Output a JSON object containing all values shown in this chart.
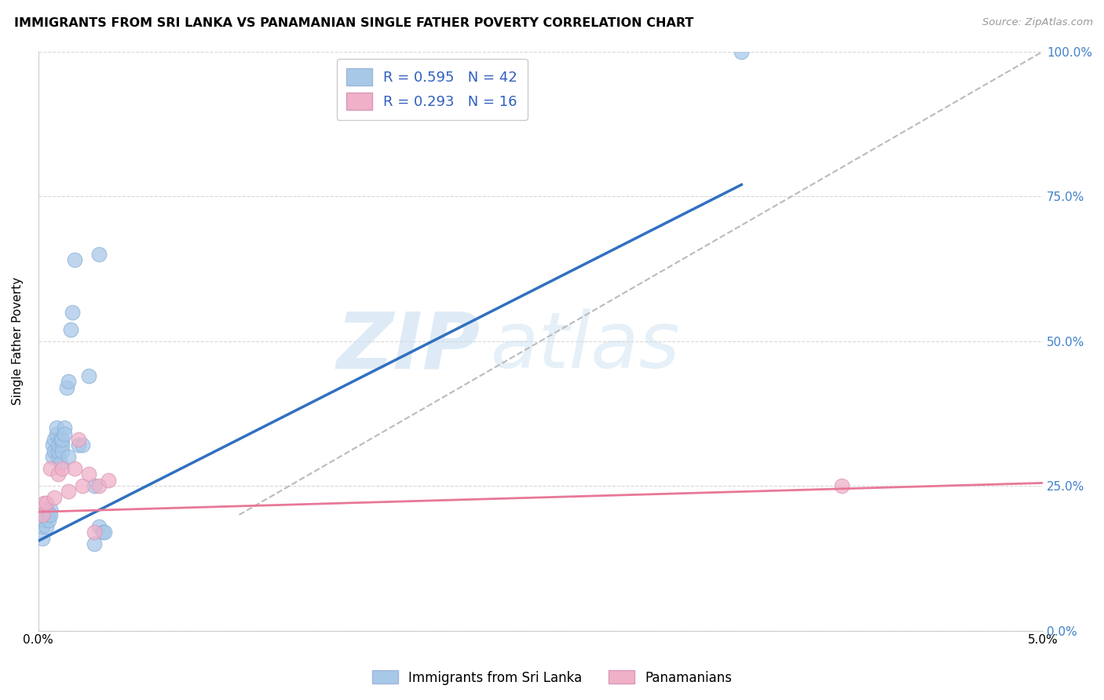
{
  "title": "IMMIGRANTS FROM SRI LANKA VS PANAMANIAN SINGLE FATHER POVERTY CORRELATION CHART",
  "source": "Source: ZipAtlas.com",
  "ylabel": "Single Father Poverty",
  "right_yticks": [
    "0.0%",
    "25.0%",
    "50.0%",
    "75.0%",
    "100.0%"
  ],
  "right_ytick_vals": [
    0.0,
    0.25,
    0.5,
    0.75,
    1.0
  ],
  "legend_blue_r": "R = 0.595",
  "legend_blue_n": "N = 42",
  "legend_pink_r": "R = 0.293",
  "legend_pink_n": "N = 16",
  "blue_color": "#a8c8e8",
  "pink_color": "#f0b0c8",
  "blue_line_color": "#3070c0",
  "pink_line_color": "#e87898",
  "watermark_zip": "ZIP",
  "watermark_atlas": "atlas",
  "blue_scatter_x": [
    0.0002,
    0.0002,
    0.0003,
    0.0003,
    0.0004,
    0.0004,
    0.0005,
    0.0005,
    0.0006,
    0.0006,
    0.0007,
    0.0007,
    0.0008,
    0.0008,
    0.0009,
    0.0009,
    0.001,
    0.001,
    0.001,
    0.0011,
    0.0011,
    0.0012,
    0.0012,
    0.0012,
    0.0013,
    0.0013,
    0.0014,
    0.0015,
    0.0015,
    0.0016,
    0.0017,
    0.0018,
    0.002,
    0.0022,
    0.0025,
    0.0028,
    0.003,
    0.0032,
    0.0033,
    0.035,
    0.003,
    0.0028
  ],
  "blue_scatter_y": [
    0.18,
    0.16,
    0.19,
    0.2,
    0.18,
    0.21,
    0.2,
    0.19,
    0.21,
    0.2,
    0.32,
    0.3,
    0.31,
    0.33,
    0.34,
    0.35,
    0.3,
    0.31,
    0.32,
    0.33,
    0.29,
    0.32,
    0.31,
    0.33,
    0.35,
    0.34,
    0.42,
    0.43,
    0.3,
    0.52,
    0.55,
    0.64,
    0.32,
    0.32,
    0.44,
    0.25,
    0.18,
    0.17,
    0.17,
    1.0,
    0.65,
    0.15
  ],
  "pink_scatter_x": [
    0.0002,
    0.0003,
    0.0004,
    0.0006,
    0.0008,
    0.001,
    0.0012,
    0.0015,
    0.0018,
    0.002,
    0.0022,
    0.0025,
    0.0028,
    0.003,
    0.0035,
    0.04
  ],
  "pink_scatter_y": [
    0.2,
    0.22,
    0.22,
    0.28,
    0.23,
    0.27,
    0.28,
    0.24,
    0.28,
    0.33,
    0.25,
    0.27,
    0.17,
    0.25,
    0.26,
    0.25
  ],
  "blue_line_x": [
    0.0,
    0.035
  ],
  "blue_line_y": [
    0.155,
    0.77
  ],
  "pink_line_x": [
    0.0,
    0.05
  ],
  "pink_line_y": [
    0.205,
    0.255
  ],
  "diag_line_x": [
    0.01,
    0.05
  ],
  "diag_line_y": [
    0.2,
    1.0
  ],
  "xlim": [
    0.0,
    0.05
  ],
  "ylim": [
    0.0,
    1.0
  ]
}
